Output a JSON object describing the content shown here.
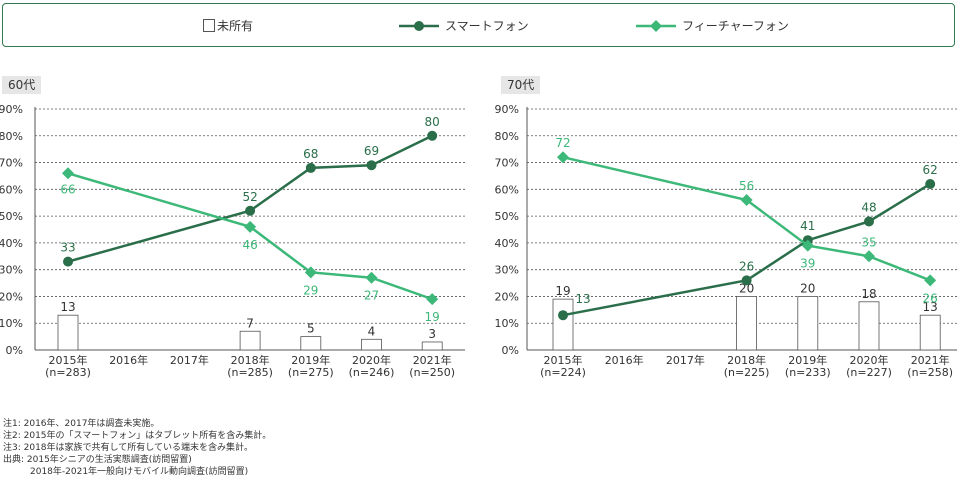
{
  "legend": {
    "none_label": "未所有",
    "smartphone_label": "スマートフォン",
    "feature_label": "フィーチャーフォン"
  },
  "colors": {
    "smartphone": "#2a6e4a",
    "feature": "#3cb878",
    "border": "#2f7a4e",
    "grid": "#555555"
  },
  "chart_data": [
    {
      "type": "line",
      "title": "60代",
      "categories": [
        "2015年\n(n=283)",
        "2016年",
        "2017年",
        "2018年\n(n=285)",
        "2019年\n(n=275)",
        "2020年\n(n=246)",
        "2021年\n(n=250)"
      ],
      "ylim": [
        0,
        90
      ],
      "yticks": [
        "0%",
        "10%",
        "20%",
        "30%",
        "40%",
        "50%",
        "60%",
        "70%",
        "80%",
        "90%"
      ],
      "series": [
        {
          "name": "未所有",
          "kind": "bar",
          "values": [
            13,
            null,
            null,
            7,
            5,
            4,
            3
          ],
          "labels": [
            "13",
            "",
            "",
            "7",
            "5",
            "4",
            "3"
          ]
        },
        {
          "name": "スマートフォン",
          "kind": "line",
          "values": [
            33,
            null,
            null,
            52,
            68,
            69,
            80
          ],
          "labels": [
            "33",
            "",
            "",
            "52",
            "68",
            "69",
            "80"
          ]
        },
        {
          "name": "フィーチャーフォン",
          "kind": "line",
          "values": [
            66,
            null,
            null,
            46,
            29,
            27,
            19
          ],
          "labels": [
            "66",
            "",
            "",
            "46",
            "29",
            "27",
            "19"
          ]
        }
      ]
    },
    {
      "type": "line",
      "title": "70代",
      "categories": [
        "2015年\n(n=224)",
        "2016年",
        "2017年",
        "2018年\n(n=225)",
        "2019年\n(n=233)",
        "2020年\n(n=227)",
        "2021年\n(n=258)"
      ],
      "ylim": [
        0,
        90
      ],
      "yticks": [
        "0%",
        "10%",
        "20%",
        "30%",
        "40%",
        "50%",
        "60%",
        "70%",
        "80%",
        "90%"
      ],
      "series": [
        {
          "name": "未所有",
          "kind": "bar",
          "values": [
            19,
            null,
            null,
            20,
            20,
            18,
            13
          ],
          "labels": [
            "19",
            "",
            "",
            "20",
            "20",
            "18",
            "13"
          ]
        },
        {
          "name": "スマートフォン",
          "kind": "line",
          "values": [
            13,
            null,
            null,
            26,
            41,
            48,
            62
          ],
          "labels": [
            "13",
            "",
            "",
            "26",
            "41",
            "48",
            "62"
          ]
        },
        {
          "name": "フィーチャーフォン",
          "kind": "line",
          "values": [
            72,
            null,
            null,
            56,
            39,
            35,
            26
          ],
          "labels": [
            "72",
            "",
            "",
            "56",
            "39",
            "35",
            "26"
          ]
        }
      ]
    }
  ],
  "notes": [
    "注1: 2016年、2017年は調査未実施。",
    "注2: 2015年の「スマートフォン」はタブレット所有を含み集計。",
    "注3: 2018年は家族で共有して所有している端末を含み集計。",
    "出典: 2015年シニアの生活実態調査(訪問留置)",
    "　　　2018年-2021年一般向けモバイル動向調査(訪問留置)"
  ]
}
